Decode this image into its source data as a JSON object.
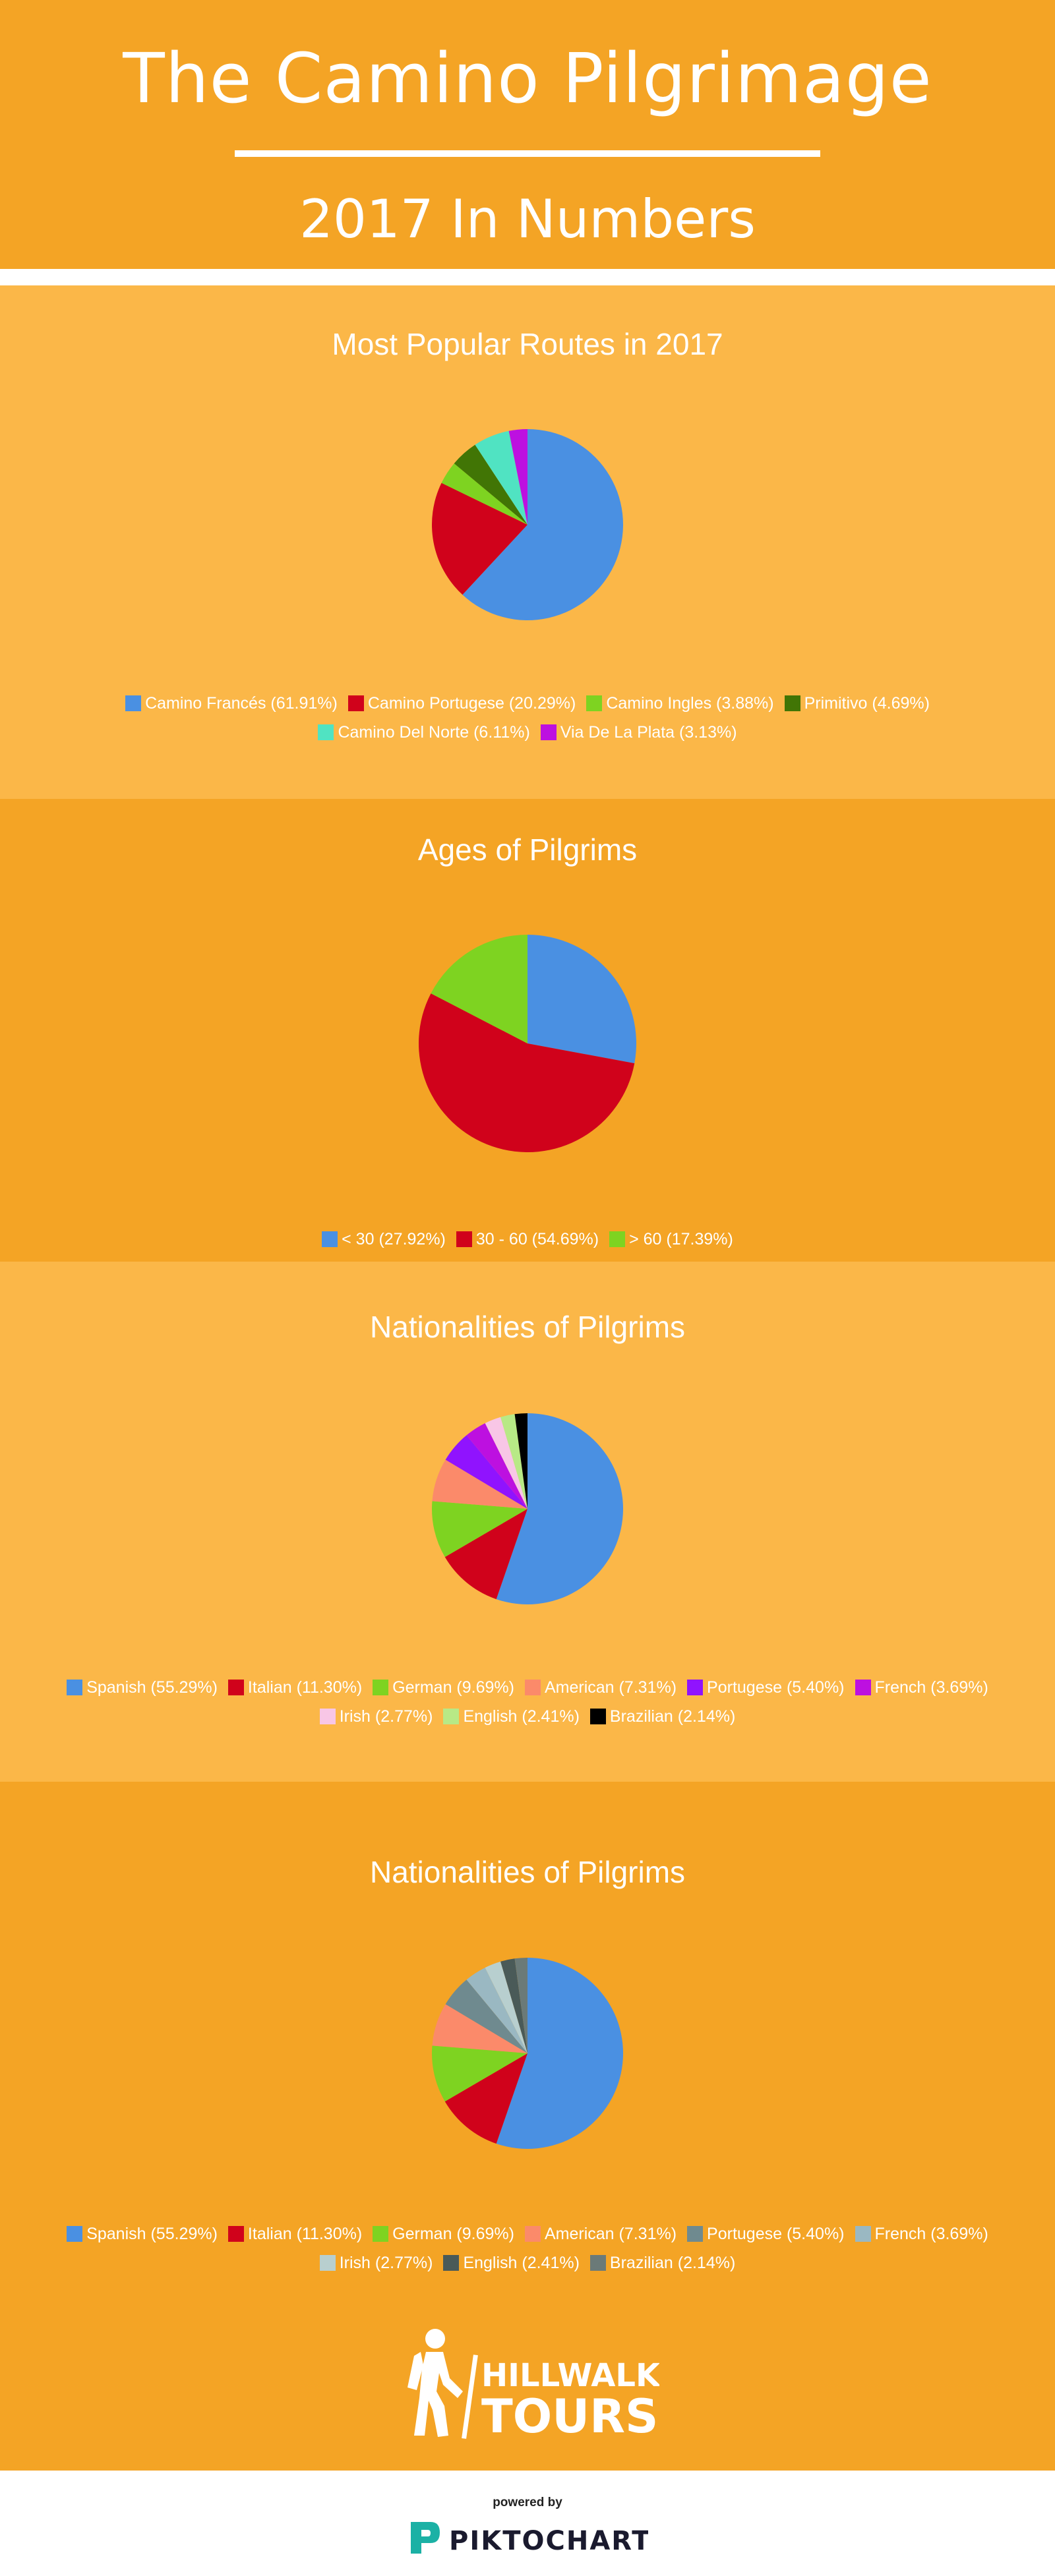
{
  "header": {
    "title": "The Camino Pilgrimage",
    "subtitle": "2017 In Numbers"
  },
  "chart_data": [
    {
      "type": "pie",
      "title": "Most Popular Routes in 2017",
      "series": [
        {
          "name": "Camino Francés",
          "label": "Camino Francés (61.91%)",
          "value": 61.91,
          "color": "#4a90e2"
        },
        {
          "name": "Camino Portugese",
          "label": "Camino Portugese (20.29%)",
          "value": 20.29,
          "color": "#d0021b"
        },
        {
          "name": "Camino Ingles",
          "label": "Camino Ingles (3.88%)",
          "value": 3.88,
          "color": "#7ed321"
        },
        {
          "name": "Primitivo",
          "label": "Primitivo (4.69%)",
          "value": 4.69,
          "color": "#417505"
        },
        {
          "name": "Camino Del Norte",
          "label": "Camino Del Norte (6.11%)",
          "value": 6.11,
          "color": "#50e3c2"
        },
        {
          "name": "Via De La Plata",
          "label": "Via De La Plata (3.13%)",
          "value": 3.13,
          "color": "#bd10e0"
        }
      ]
    },
    {
      "type": "pie",
      "title": "Ages of Pilgrims",
      "series": [
        {
          "name": "< 30",
          "label": "< 30 (27.92%)",
          "value": 27.92,
          "color": "#4a90e2"
        },
        {
          "name": "30 - 60",
          "label": "30 - 60 (54.69%)",
          "value": 54.69,
          "color": "#d0021b"
        },
        {
          "name": "> 60",
          "label": "> 60 (17.39%)",
          "value": 17.39,
          "color": "#7ed321"
        }
      ]
    },
    {
      "type": "pie",
      "title": "Nationalities of Pilgrims",
      "series": [
        {
          "name": "Spanish",
          "label": "Spanish (55.29%)",
          "value": 55.29,
          "color": "#4a90e2"
        },
        {
          "name": "Italian",
          "label": "Italian (11.30%)",
          "value": 11.3,
          "color": "#d0021b"
        },
        {
          "name": "German",
          "label": "German (9.69%)",
          "value": 9.69,
          "color": "#7ed321"
        },
        {
          "name": "American",
          "label": "American (7.31%)",
          "value": 7.31,
          "color": "#fb8a6a"
        },
        {
          "name": "Portugese",
          "label": "Portugese (5.40%)",
          "value": 5.4,
          "color": "#9013fe"
        },
        {
          "name": "French",
          "label": "French (3.69%)",
          "value": 3.69,
          "color": "#bd10e0"
        },
        {
          "name": "Irish",
          "label": "Irish (2.77%)",
          "value": 2.77,
          "color": "#f8c6e6"
        },
        {
          "name": "English",
          "label": "English (2.41%)",
          "value": 2.41,
          "color": "#b8e986"
        },
        {
          "name": "Brazilian",
          "label": "Brazilian (2.14%)",
          "value": 2.14,
          "color": "#000000"
        }
      ]
    },
    {
      "type": "pie",
      "title": "Nationalities of Pilgrims",
      "series": [
        {
          "name": "Spanish",
          "label": "Spanish (55.29%)",
          "value": 55.29,
          "color": "#4a90e2"
        },
        {
          "name": "Italian",
          "label": "Italian (11.30%)",
          "value": 11.3,
          "color": "#d0021b"
        },
        {
          "name": "German",
          "label": "German (9.69%)",
          "value": 9.69,
          "color": "#7ed321"
        },
        {
          "name": "American",
          "label": "American (7.31%)",
          "value": 7.31,
          "color": "#fb8a6a"
        },
        {
          "name": "Portugese",
          "label": "Portugese (5.40%)",
          "value": 5.4,
          "color": "#6f8a8f"
        },
        {
          "name": "French",
          "label": "French (3.69%)",
          "value": 3.69,
          "color": "#9ab8c2"
        },
        {
          "name": "Irish",
          "label": "Irish (2.77%)",
          "value": 2.77,
          "color": "#b8cfcf"
        },
        {
          "name": "English",
          "label": "English (2.41%)",
          "value": 2.41,
          "color": "#4a5a58"
        },
        {
          "name": "Brazilian",
          "label": "Brazilian (2.14%)",
          "value": 2.14,
          "color": "#6b7a78"
        }
      ]
    }
  ],
  "logo": {
    "text_top": "HILLWALK",
    "text_bottom": "TOURS"
  },
  "footer": {
    "powered_by": "powered by",
    "brand": "PIKTOCHART",
    "brand_color": "#1a1a2e",
    "icon_color": "#1bb1a5"
  }
}
